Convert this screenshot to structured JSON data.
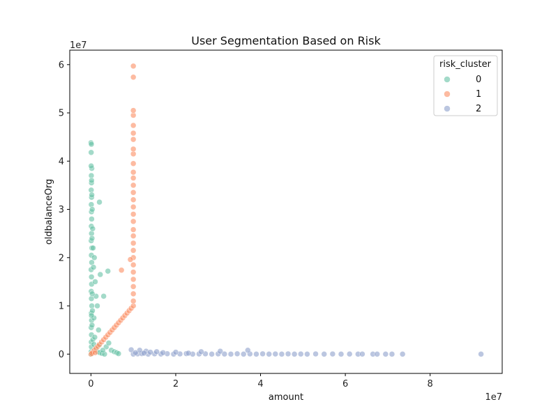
{
  "chart_data": {
    "type": "scatter",
    "title": "User Segmentation Based on Risk",
    "xlabel": "amount",
    "ylabel": "oldbalanceOrg",
    "x_scale_label": "1e7",
    "y_scale_label": "1e7",
    "xlim": [
      -5000000,
      97000000
    ],
    "ylim": [
      -4000000,
      63000000
    ],
    "x_ticks": [
      0,
      20000000,
      40000000,
      60000000,
      80000000
    ],
    "x_tick_labels": [
      "0",
      "2",
      "4",
      "6",
      "8"
    ],
    "y_ticks": [
      0,
      10000000,
      20000000,
      30000000,
      40000000,
      50000000,
      60000000
    ],
    "y_tick_labels": [
      "0",
      "1",
      "2",
      "3",
      "4",
      "5",
      "6"
    ],
    "grid": false,
    "legend": {
      "title": "risk_cluster",
      "placement": "top-right",
      "entries": [
        "0",
        "1",
        "2"
      ]
    },
    "series": [
      {
        "name": "0",
        "color": "#66c2a5",
        "points": [
          [
            0,
            0
          ],
          [
            50000,
            500000
          ],
          [
            100000,
            1500000
          ],
          [
            80000,
            2500000
          ],
          [
            120000,
            4000000
          ],
          [
            60000,
            5500000
          ],
          [
            150000,
            7000000
          ],
          [
            90000,
            8500000
          ],
          [
            200000,
            10000000
          ],
          [
            110000,
            11500000
          ],
          [
            70000,
            13000000
          ],
          [
            160000,
            14500000
          ],
          [
            130000,
            16000000
          ],
          [
            40000,
            17500000
          ],
          [
            180000,
            19000000
          ],
          [
            100000,
            20500000
          ],
          [
            220000,
            22000000
          ],
          [
            60000,
            23500000
          ],
          [
            140000,
            25000000
          ],
          [
            90000,
            26500000
          ],
          [
            170000,
            28000000
          ],
          [
            120000,
            29500000
          ],
          [
            80000,
            31000000
          ],
          [
            150000,
            32500000
          ],
          [
            60000,
            34000000
          ],
          [
            130000,
            35500000
          ],
          [
            90000,
            37000000
          ],
          [
            200000,
            38500000
          ],
          [
            50000,
            41800000
          ],
          [
            0,
            43800000
          ],
          [
            100000,
            43500000
          ],
          [
            300000,
            30000000
          ],
          [
            400000,
            26000000
          ],
          [
            500000,
            22000000
          ],
          [
            600000,
            18000000
          ],
          [
            800000,
            20000000
          ],
          [
            1000000,
            15000000
          ],
          [
            1200000,
            12000000
          ],
          [
            1500000,
            10000000
          ],
          [
            1800000,
            5000000
          ],
          [
            2000000,
            31500000
          ],
          [
            2200000,
            16500000
          ],
          [
            4000000,
            17200000
          ],
          [
            3000000,
            12000000
          ],
          [
            350000,
            9000000
          ],
          [
            250000,
            6000000
          ],
          [
            450000,
            3000000
          ],
          [
            700000,
            2000000
          ],
          [
            1100000,
            1000000
          ],
          [
            1600000,
            500000
          ],
          [
            2100000,
            300000
          ],
          [
            2600000,
            150000
          ],
          [
            3200000,
            0
          ],
          [
            3600000,
            1500000
          ],
          [
            4200000,
            2300000
          ],
          [
            4800000,
            800000
          ],
          [
            5500000,
            500000
          ],
          [
            6100000,
            300000
          ],
          [
            6500000,
            100000
          ],
          [
            2800000,
            800000
          ],
          [
            1900000,
            1800000
          ],
          [
            900000,
            3500000
          ],
          [
            700000,
            7500000
          ],
          [
            300000,
            12500000
          ],
          [
            200000,
            33000000
          ],
          [
            150000,
            36000000
          ],
          [
            250000,
            24000000
          ],
          [
            50000,
            39000000
          ],
          [
            120000,
            8000000
          ],
          [
            80000,
            45000
          ]
        ]
      },
      {
        "name": "1",
        "color": "#fc8d62",
        "points": [
          [
            0,
            0
          ],
          [
            400000,
            400000
          ],
          [
            800000,
            800000
          ],
          [
            1200000,
            1200000
          ],
          [
            1600000,
            1600000
          ],
          [
            2000000,
            2000000
          ],
          [
            2500000,
            2500000
          ],
          [
            3000000,
            3000000
          ],
          [
            3500000,
            3500000
          ],
          [
            4000000,
            4000000
          ],
          [
            4500000,
            4500000
          ],
          [
            5000000,
            5000000
          ],
          [
            5500000,
            5500000
          ],
          [
            6000000,
            6000000
          ],
          [
            6500000,
            6500000
          ],
          [
            7000000,
            7000000
          ],
          [
            7500000,
            7500000
          ],
          [
            8000000,
            8000000
          ],
          [
            8500000,
            8500000
          ],
          [
            9000000,
            9000000
          ],
          [
            9500000,
            9500000
          ],
          [
            10000000,
            10000000
          ],
          [
            10000000,
            11000000
          ],
          [
            10000000,
            12500000
          ],
          [
            10000000,
            14000000
          ],
          [
            10000000,
            15500000
          ],
          [
            10000000,
            17000000
          ],
          [
            10000000,
            18500000
          ],
          [
            10000000,
            20000000
          ],
          [
            10000000,
            21500000
          ],
          [
            10000000,
            23000000
          ],
          [
            10000000,
            24500000
          ],
          [
            10000000,
            25800000
          ],
          [
            10000000,
            27500000
          ],
          [
            10000000,
            29000000
          ],
          [
            10000000,
            30500000
          ],
          [
            10000000,
            32000000
          ],
          [
            10000000,
            33500000
          ],
          [
            10000000,
            35000000
          ],
          [
            10000000,
            36500000
          ],
          [
            10000000,
            37700000
          ],
          [
            10000000,
            39500000
          ],
          [
            10000000,
            41500000
          ],
          [
            10000000,
            42500000
          ],
          [
            10000000,
            44500000
          ],
          [
            10000000,
            45800000
          ],
          [
            10000000,
            47400000
          ],
          [
            10000000,
            49500000
          ],
          [
            10000000,
            50500000
          ],
          [
            10000000,
            57400000
          ],
          [
            10000000,
            59700000
          ],
          [
            7200000,
            17400000
          ],
          [
            9300000,
            19600000
          ],
          [
            200000,
            150000
          ],
          [
            1000000,
            300000
          ]
        ]
      },
      {
        "name": "2",
        "color": "#8da0cb",
        "points": [
          [
            10000000,
            0
          ],
          [
            11000000,
            50000
          ],
          [
            12000000,
            100000
          ],
          [
            13500000,
            0
          ],
          [
            15000000,
            60000
          ],
          [
            16500000,
            20000
          ],
          [
            18000000,
            80000
          ],
          [
            19500000,
            0
          ],
          [
            21000000,
            40000
          ],
          [
            22500000,
            100000
          ],
          [
            24000000,
            0
          ],
          [
            25500000,
            30000
          ],
          [
            27000000,
            60000
          ],
          [
            28500000,
            0
          ],
          [
            30000000,
            50000
          ],
          [
            31500000,
            20000
          ],
          [
            33000000,
            0
          ],
          [
            34500000,
            70000
          ],
          [
            36000000,
            0
          ],
          [
            37500000,
            40000
          ],
          [
            39000000,
            0
          ],
          [
            40500000,
            60000
          ],
          [
            42000000,
            0
          ],
          [
            43500000,
            30000
          ],
          [
            45000000,
            0
          ],
          [
            46500000,
            50000
          ],
          [
            48000000,
            0
          ],
          [
            49500000,
            20000
          ],
          [
            51000000,
            0
          ],
          [
            53000000,
            40000
          ],
          [
            55000000,
            0
          ],
          [
            57000000,
            30000
          ],
          [
            59000000,
            0
          ],
          [
            61000000,
            20000
          ],
          [
            63000000,
            0
          ],
          [
            64000000,
            10000
          ],
          [
            66500000,
            0
          ],
          [
            67500000,
            0
          ],
          [
            69500000,
            0
          ],
          [
            71000000,
            0
          ],
          [
            73500000,
            0
          ],
          [
            92000000,
            0
          ],
          [
            11500000,
            800000
          ],
          [
            13000000,
            600000
          ],
          [
            15500000,
            500000
          ],
          [
            20000000,
            400000
          ],
          [
            26000000,
            500000
          ],
          [
            30500000,
            600000
          ],
          [
            37000000,
            800000
          ],
          [
            9500000,
            900000
          ],
          [
            10500000,
            300000
          ],
          [
            12500000,
            200000
          ],
          [
            14000000,
            400000
          ],
          [
            17000000,
            300000
          ],
          [
            23000000,
            200000
          ]
        ]
      }
    ]
  }
}
